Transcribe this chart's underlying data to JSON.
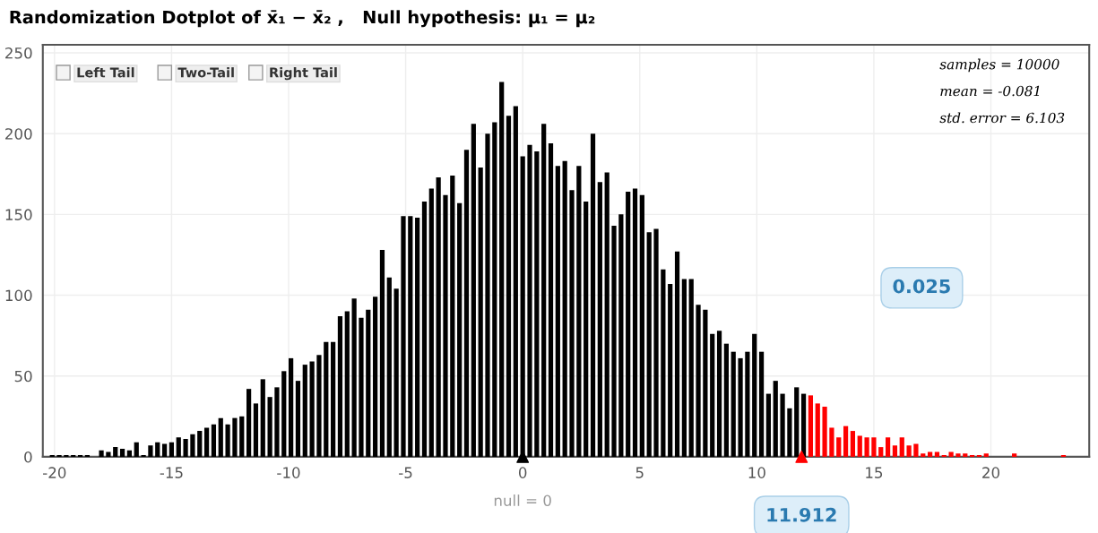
{
  "chart_data": {
    "type": "bar",
    "title": "Randomization Dotplot of x̄₁ − x̄₂ ,   Null hypothesis: μ₁ = μ₂",
    "series": [
      {
        "color": "#000000",
        "x": [
          -20.1,
          -19.8,
          -19.5,
          -19.2,
          -18.9,
          -18.6,
          -18.0,
          -17.7,
          -17.4,
          -17.1,
          -16.8,
          -16.5,
          -16.2,
          -15.9,
          -15.6,
          -15.3,
          -15.0,
          -14.7,
          -14.4,
          -14.1,
          -13.8,
          -13.5,
          -13.2,
          -12.9,
          -12.6,
          -12.3,
          -12.0,
          -11.7,
          -11.4,
          -11.1,
          -10.8,
          -10.5,
          -10.2,
          -9.9,
          -9.6,
          -9.3,
          -9.0,
          -8.7,
          -8.4,
          -8.1,
          -7.8,
          -7.5,
          -7.2,
          -6.9,
          -6.6,
          -6.3,
          -6.0,
          -5.7,
          -5.4,
          -5.1,
          -4.8,
          -4.5,
          -4.2,
          -3.9,
          -3.6,
          -3.3,
          -3.0,
          -2.7,
          -2.4,
          -2.1,
          -1.8,
          -1.5,
          -1.2,
          -0.9,
          -0.6,
          -0.3,
          0.0,
          0.3,
          0.6,
          0.9,
          1.2,
          1.5,
          1.8,
          2.1,
          2.4,
          2.7,
          3.0,
          3.3,
          3.6,
          3.9,
          4.2,
          4.5,
          4.8,
          5.1,
          5.4,
          5.7,
          6.0,
          6.3,
          6.6,
          6.9,
          7.2,
          7.5,
          7.8,
          8.1,
          8.4,
          8.7,
          9.0,
          9.3,
          9.6,
          9.9,
          10.2,
          10.5,
          10.8,
          11.1,
          11.4,
          11.7,
          12.0
        ],
        "values": [
          1,
          1,
          1,
          1,
          1,
          1,
          4,
          3,
          6,
          5,
          4,
          9,
          1,
          7,
          9,
          8,
          9,
          12,
          11,
          14,
          16,
          18,
          20,
          24,
          20,
          24,
          25,
          42,
          33,
          48,
          37,
          43,
          53,
          61,
          47,
          57,
          59,
          63,
          71,
          71,
          87,
          90,
          98,
          86,
          91,
          99,
          128,
          111,
          104,
          149,
          149,
          148,
          158,
          166,
          173,
          162,
          174,
          157,
          190,
          206,
          179,
          200,
          207,
          232,
          211,
          217,
          186,
          193,
          189,
          206,
          194,
          180,
          183,
          165,
          180,
          158,
          200,
          170,
          176,
          143,
          150,
          164,
          166,
          162,
          139,
          141,
          116,
          107,
          127,
          110,
          110,
          94,
          91,
          76,
          78,
          70,
          65,
          61,
          65,
          76,
          65,
          39,
          47,
          39,
          30,
          43,
          39
        ]
      },
      {
        "color": "#ff0000",
        "x": [
          12.3,
          12.6,
          12.9,
          13.2,
          13.5,
          13.8,
          14.1,
          14.4,
          14.7,
          15.0,
          15.3,
          15.6,
          15.9,
          16.2,
          16.5,
          16.8,
          17.1,
          17.4,
          17.7,
          18.0,
          18.3,
          18.6,
          18.9,
          19.2,
          19.5,
          19.8,
          21.0,
          23.1
        ],
        "values": [
          38,
          33,
          31,
          18,
          12,
          19,
          16,
          13,
          12,
          12,
          6,
          12,
          7,
          12,
          7,
          8,
          2,
          3,
          3,
          1,
          3,
          2,
          2,
          1,
          1,
          2,
          2,
          1
        ]
      },
      {
        "type": "scatter",
        "color": "#000000",
        "x": [
          0
        ],
        "values": [
          0
        ]
      },
      {
        "type": "scatter",
        "color": "#ff0000",
        "x": [
          11.912
        ],
        "values": [
          0
        ]
      }
    ],
    "marker": "triangle",
    "xlim": [
      -20.5,
      24.2
    ],
    "ylim": [
      0,
      255
    ],
    "xticks": [
      -20,
      -15,
      -10,
      -5,
      0,
      5,
      10,
      15,
      20
    ],
    "yticks": [
      0,
      50,
      100,
      150,
      200,
      250
    ],
    "grid": true,
    "annotations": [
      "Left Tail",
      "Two-Tail",
      "Right Tail",
      "samples = 10000",
      "mean = -0.081",
      "std. error = 6.103",
      "0.025",
      {
        "text": "null = 0",
        "x": 0,
        "y": 0
      },
      {
        "text": "11.912",
        "x": 11.912,
        "y": 0
      }
    ]
  }
}
